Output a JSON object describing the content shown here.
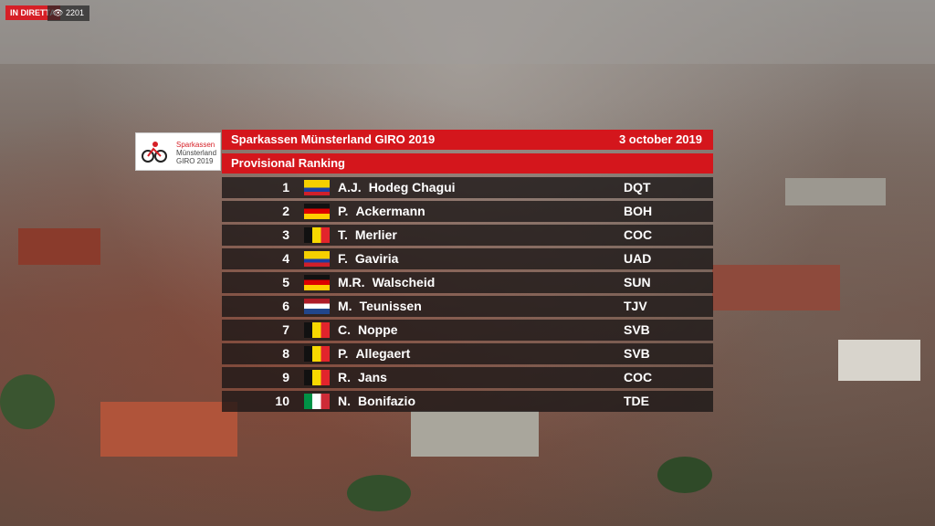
{
  "stream": {
    "live_label": "IN DIRETTA",
    "views": "2201"
  },
  "logo": {
    "line1": "Sparkassen",
    "line2": "Münsterland",
    "line3": "GIRO 2019"
  },
  "header": {
    "title": "Sparkassen Münsterland GIRO 2019",
    "date": "3 october 2019",
    "subtitle": "Provisional Ranking"
  },
  "ranking": [
    {
      "rank": "1",
      "initials": "A.J.",
      "surname": "Hodeg Chagui",
      "team": "DQT"
    },
    {
      "rank": "2",
      "initials": "P.",
      "surname": "Ackermann",
      "team": "BOH"
    },
    {
      "rank": "3",
      "initials": "T.",
      "surname": "Merlier",
      "team": "COC"
    },
    {
      "rank": "4",
      "initials": "F.",
      "surname": "Gaviria",
      "team": "UAD"
    },
    {
      "rank": "5",
      "initials": "M.R.",
      "surname": "Walscheid",
      "team": "SUN"
    },
    {
      "rank": "6",
      "initials": "M.",
      "surname": "Teunissen",
      "team": "TJV"
    },
    {
      "rank": "7",
      "initials": "C.",
      "surname": "Noppe",
      "team": "SVB"
    },
    {
      "rank": "8",
      "initials": "P.",
      "surname": "Allegaert",
      "team": "SVB"
    },
    {
      "rank": "9",
      "initials": "R.",
      "surname": "Jans",
      "team": "COC"
    },
    {
      "rank": "10",
      "initials": "N.",
      "surname": "Bonifazio",
      "team": "TDE"
    }
  ]
}
